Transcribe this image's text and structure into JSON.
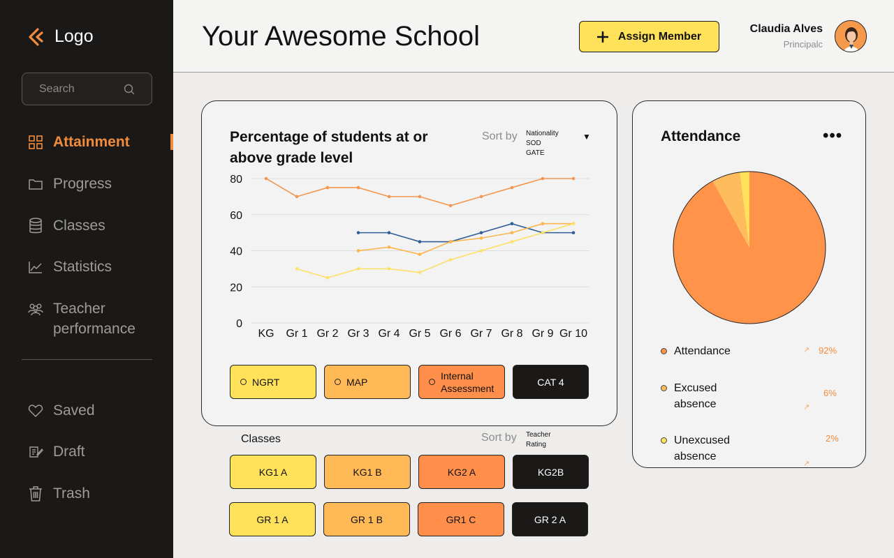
{
  "sidebar": {
    "logo": "Logo",
    "search_placeholder": "Search",
    "nav": [
      {
        "label": "Attainment",
        "icon": "grid-icon",
        "active": true
      },
      {
        "label": "Progress",
        "icon": "folder-icon"
      },
      {
        "label": "Classes",
        "icon": "database-icon"
      },
      {
        "label": "Statistics",
        "icon": "line-chart-icon"
      },
      {
        "label": "Teacher performance",
        "icon": "users-icon"
      }
    ],
    "secondary": [
      {
        "label": "Saved",
        "icon": "heart-icon"
      },
      {
        "label": "Draft",
        "icon": "edit-icon"
      },
      {
        "label": "Trash",
        "icon": "trash-icon"
      }
    ]
  },
  "header": {
    "title": "Your Awesome School",
    "assign_label": "Assign Member",
    "user_name": "Claudia Alves",
    "user_role": "Principalc"
  },
  "grade_chart": {
    "sort_label": "Sort by",
    "sort_options": [
      "Nationality",
      "SOD",
      "GATE"
    ],
    "legend": [
      "NGRT",
      "MAP",
      "Internal Assessment",
      "CAT 4"
    ]
  },
  "chart_data": {
    "type": "line",
    "title": "Percentage of students at or above grade level",
    "categories": [
      "KG",
      "Gr 1",
      "Gr 2",
      "Gr 3",
      "Gr 4",
      "Gr 5",
      "Gr 6",
      "Gr 7",
      "Gr 8",
      "Gr 9",
      "Gr 10"
    ],
    "yticks": [
      0,
      20,
      40,
      60,
      80
    ],
    "ylim": [
      0,
      80
    ],
    "series": [
      {
        "name": "Internal Assessment",
        "color": "#f5964f",
        "values": [
          80,
          70,
          75,
          75,
          70,
          70,
          65,
          70,
          75,
          80,
          80
        ]
      },
      {
        "name": "CAT 4",
        "color": "#2f5d95",
        "values": [
          null,
          null,
          null,
          50,
          50,
          45,
          45,
          50,
          55,
          50,
          50
        ]
      },
      {
        "name": "MAP",
        "color": "#fbb54c",
        "values": [
          null,
          null,
          null,
          40,
          42,
          38,
          45,
          47,
          50,
          55,
          55
        ]
      },
      {
        "name": "NGRT",
        "color": "#fde067",
        "values": [
          null,
          30,
          25,
          30,
          30,
          28,
          35,
          40,
          45,
          50,
          55
        ]
      }
    ]
  },
  "classes": {
    "label": "Classes",
    "sort_label": "Sort by",
    "sort_option": "Teacher Rating",
    "items": [
      "KG1 A",
      "KG1 B",
      "KG2 A",
      "KG2B",
      "GR 1 A",
      "GR 1 B",
      "GR1 C",
      "GR 2 A"
    ]
  },
  "attendance": {
    "title": "Attendance",
    "more": "•••",
    "slices": [
      {
        "label": "Attendance",
        "value": 92,
        "pct": "92%",
        "color": "#ff934a"
      },
      {
        "label": "Excused absence",
        "value": 6,
        "pct": "6%",
        "color": "#ffbc5c"
      },
      {
        "label": "Unexcused absence",
        "value": 2,
        "pct": "2%",
        "color": "#ffe259"
      }
    ]
  }
}
